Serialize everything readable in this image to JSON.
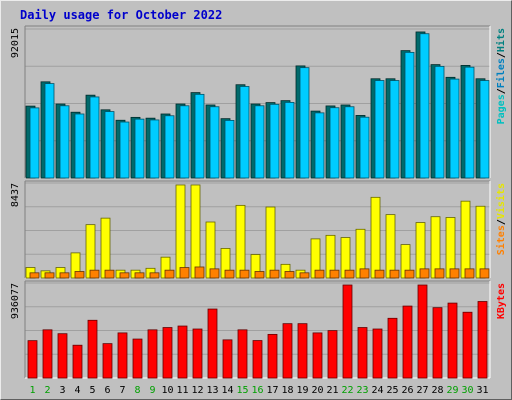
{
  "chart_data": {
    "type": "bar",
    "title": "Daily usage for October 2022",
    "days": [
      "1",
      "2",
      "3",
      "4",
      "5",
      "6",
      "7",
      "8",
      "9",
      "10",
      "11",
      "12",
      "13",
      "14",
      "15",
      "16",
      "17",
      "18",
      "19",
      "20",
      "21",
      "22",
      "23",
      "24",
      "25",
      "26",
      "27",
      "28",
      "29",
      "30",
      "31"
    ],
    "weekend_days": [
      "1",
      "2",
      "8",
      "9",
      "15",
      "16",
      "22",
      "23",
      "29",
      "30"
    ],
    "panels": [
      {
        "id": "hits-files-pages",
        "max_label": "92015",
        "ymax": 92015,
        "side_label": [
          "Pages",
          "/",
          "Files",
          "/",
          "Hits"
        ],
        "side_colors": [
          "#00c0c0",
          "#000000",
          "#0080c0",
          "#000000",
          "#008080"
        ],
        "series": [
          {
            "name": "Hits",
            "color": "#006a6a",
            "values": [
              44700,
              59800,
              46000,
              40900,
              51500,
              42400,
              35900,
              37700,
              37200,
              39800,
              46000,
              53100,
              45400,
              36900,
              58000,
              46000,
              46900,
              48100,
              69700,
              41600,
              44800,
              45400,
              38900,
              61700,
              61700,
              79200,
              90800,
              70500,
              62600,
              70000,
              61700
            ]
          },
          {
            "name": "Files",
            "color": "#00ccff",
            "values": [
              43600,
              58700,
              44900,
              39800,
              50400,
              41300,
              34800,
              36600,
              36100,
              38700,
              44900,
              52000,
              44300,
              35800,
              56900,
              44900,
              45800,
              47000,
              68600,
              40500,
              43700,
              44300,
              37800,
              60600,
              60600,
              78100,
              89700,
              69400,
              61500,
              68900,
              60600
            ]
          }
        ]
      },
      {
        "id": "visits-sites",
        "max_label": "8437",
        "ymax": 8437,
        "side_label": [
          "Sites",
          "/",
          "Visits"
        ],
        "side_colors": [
          "#ff8000",
          "#000000",
          "#e6e600"
        ],
        "series": [
          {
            "name": "Visits",
            "color": "#ffff00",
            "values": [
              950,
              650,
              950,
              2280,
              4840,
              5430,
              710,
              710,
              880,
              1890,
              8440,
              8440,
              5080,
              2680,
              6590,
              2130,
              6440,
              1240,
              710,
              3550,
              3870,
              3670,
              4420,
              7320,
              5750,
              3030,
              5030,
              5560,
              5490,
              6970,
              6510
            ]
          },
          {
            "name": "Sites",
            "color": "#ff8000",
            "values": [
              470,
              470,
              470,
              590,
              710,
              710,
              470,
              470,
              470,
              710,
              950,
              1000,
              830,
              710,
              710,
              590,
              710,
              590,
              470,
              710,
              710,
              710,
              830,
              710,
              710,
              710,
              830,
              830,
              830,
              830,
              830
            ]
          }
        ]
      },
      {
        "id": "kbytes",
        "max_label": "936077",
        "ymax": 936077,
        "side_label": [
          "KBytes"
        ],
        "side_colors": [
          "#ff0000"
        ],
        "series": [
          {
            "name": "KBytes",
            "color": "#ff0000",
            "values": [
              376000,
              485000,
              446000,
              330000,
              581000,
              346000,
              454000,
              392000,
              485000,
              508000,
              523000,
              493000,
              694000,
              384000,
              485000,
              377000,
              439000,
              547000,
              547000,
              454000,
              477000,
              936000,
              508000,
              493000,
              601000,
              724000,
              936000,
              708000,
              754000,
              662000,
              770000
            ]
          }
        ]
      }
    ]
  }
}
